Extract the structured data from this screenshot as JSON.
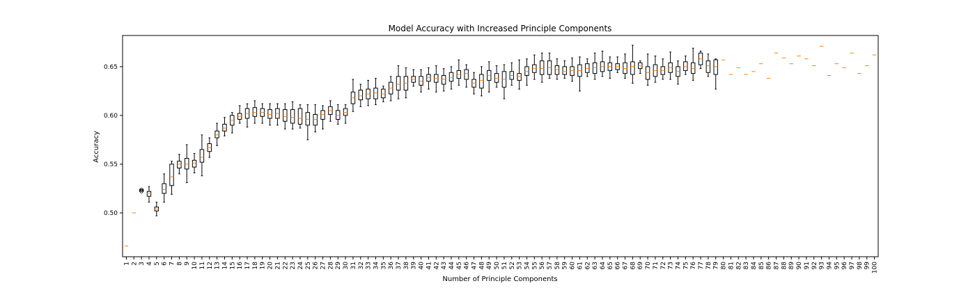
{
  "chart_data": {
    "type": "box",
    "title": "Model Accuracy with Increased Principle Components",
    "xlabel": "Number of Principle Components",
    "ylabel": "Accuracy",
    "ylim": [
      0.455,
      0.682
    ],
    "yticks": [
      0.5,
      0.55,
      0.6,
      0.65
    ],
    "ytick_labels": [
      "0.50",
      "0.55",
      "0.60",
      "0.65"
    ],
    "grid": false,
    "colors": {
      "box": "#000000",
      "median": "#ff7f0e",
      "flier": "#000000"
    },
    "categories": [
      "1",
      "2",
      "3",
      "4",
      "5",
      "6",
      "7",
      "8",
      "9",
      "10",
      "11",
      "12",
      "13",
      "14",
      "15",
      "16",
      "17",
      "18",
      "19",
      "20",
      "21",
      "22",
      "23",
      "24",
      "25",
      "26",
      "27",
      "28",
      "29",
      "30",
      "31",
      "32",
      "33",
      "34",
      "35",
      "36",
      "37",
      "38",
      "39",
      "40",
      "41",
      "42",
      "43",
      "44",
      "45",
      "46",
      "47",
      "48",
      "49",
      "50",
      "51",
      "52",
      "53",
      "54",
      "55",
      "56",
      "57",
      "58",
      "59",
      "60",
      "61",
      "62",
      "63",
      "64",
      "65",
      "66",
      "67",
      "68",
      "69",
      "70",
      "71",
      "72",
      "73",
      "74",
      "75",
      "76",
      "77",
      "78",
      "79",
      "80",
      "81",
      "82",
      "83",
      "84",
      "85",
      "86",
      "87",
      "88",
      "89",
      "90",
      "91",
      "92",
      "93",
      "94",
      "95",
      "96",
      "97",
      "98",
      "99",
      "100"
    ],
    "boxes": [
      {
        "wl": 0.466,
        "q1": 0.466,
        "med": 0.466,
        "q3": 0.466,
        "wh": 0.466
      },
      {
        "wl": 0.5,
        "q1": 0.5,
        "med": 0.5,
        "q3": 0.5,
        "wh": 0.5
      },
      {
        "wl": 0.522,
        "q1": 0.522,
        "med": 0.522,
        "q3": 0.524,
        "wh": 0.524
      },
      {
        "wl": 0.511,
        "q1": 0.517,
        "med": 0.52,
        "q3": 0.522,
        "wh": 0.527
      },
      {
        "wl": 0.497,
        "q1": 0.502,
        "med": 0.504,
        "q3": 0.506,
        "wh": 0.511
      },
      {
        "wl": 0.511,
        "q1": 0.52,
        "med": 0.524,
        "q3": 0.53,
        "wh": 0.54
      },
      {
        "wl": 0.519,
        "q1": 0.528,
        "med": 0.537,
        "q3": 0.55,
        "wh": 0.553
      },
      {
        "wl": 0.54,
        "q1": 0.546,
        "med": 0.55,
        "q3": 0.553,
        "wh": 0.56
      },
      {
        "wl": 0.531,
        "q1": 0.545,
        "med": 0.55,
        "q3": 0.556,
        "wh": 0.57
      },
      {
        "wl": 0.541,
        "q1": 0.547,
        "med": 0.551,
        "q3": 0.554,
        "wh": 0.561
      },
      {
        "wl": 0.538,
        "q1": 0.552,
        "med": 0.557,
        "q3": 0.565,
        "wh": 0.58
      },
      {
        "wl": 0.557,
        "q1": 0.563,
        "med": 0.567,
        "q3": 0.571,
        "wh": 0.577
      },
      {
        "wl": 0.569,
        "q1": 0.577,
        "med": 0.58,
        "q3": 0.584,
        "wh": 0.592
      },
      {
        "wl": 0.579,
        "q1": 0.584,
        "med": 0.587,
        "q3": 0.591,
        "wh": 0.598
      },
      {
        "wl": 0.582,
        "q1": 0.59,
        "med": 0.595,
        "q3": 0.6,
        "wh": 0.603
      },
      {
        "wl": 0.592,
        "q1": 0.596,
        "med": 0.599,
        "q3": 0.602,
        "wh": 0.61
      },
      {
        "wl": 0.588,
        "q1": 0.597,
        "med": 0.602,
        "q3": 0.607,
        "wh": 0.612
      },
      {
        "wl": 0.592,
        "q1": 0.599,
        "med": 0.603,
        "q3": 0.608,
        "wh": 0.615
      },
      {
        "wl": 0.592,
        "q1": 0.599,
        "med": 0.603,
        "q3": 0.607,
        "wh": 0.612
      },
      {
        "wl": 0.59,
        "q1": 0.597,
        "med": 0.601,
        "q3": 0.606,
        "wh": 0.612
      },
      {
        "wl": 0.59,
        "q1": 0.597,
        "med": 0.602,
        "q3": 0.607,
        "wh": 0.612
      },
      {
        "wl": 0.586,
        "q1": 0.594,
        "med": 0.599,
        "q3": 0.606,
        "wh": 0.612
      },
      {
        "wl": 0.586,
        "q1": 0.592,
        "med": 0.598,
        "q3": 0.606,
        "wh": 0.614
      },
      {
        "wl": 0.587,
        "q1": 0.591,
        "med": 0.597,
        "q3": 0.607,
        "wh": 0.611
      },
      {
        "wl": 0.575,
        "q1": 0.59,
        "med": 0.596,
        "q3": 0.603,
        "wh": 0.611
      },
      {
        "wl": 0.583,
        "q1": 0.59,
        "med": 0.596,
        "q3": 0.601,
        "wh": 0.611
      },
      {
        "wl": 0.586,
        "q1": 0.596,
        "med": 0.601,
        "q3": 0.605,
        "wh": 0.61
      },
      {
        "wl": 0.594,
        "q1": 0.601,
        "med": 0.605,
        "q3": 0.609,
        "wh": 0.615
      },
      {
        "wl": 0.591,
        "q1": 0.596,
        "med": 0.6,
        "q3": 0.605,
        "wh": 0.611
      },
      {
        "wl": 0.592,
        "q1": 0.6,
        "med": 0.603,
        "q3": 0.607,
        "wh": 0.611
      },
      {
        "wl": 0.604,
        "q1": 0.612,
        "med": 0.618,
        "q3": 0.624,
        "wh": 0.637
      },
      {
        "wl": 0.609,
        "q1": 0.616,
        "med": 0.62,
        "q3": 0.626,
        "wh": 0.632
      },
      {
        "wl": 0.61,
        "q1": 0.617,
        "med": 0.622,
        "q3": 0.627,
        "wh": 0.636
      },
      {
        "wl": 0.611,
        "q1": 0.617,
        "med": 0.623,
        "q3": 0.628,
        "wh": 0.638
      },
      {
        "wl": 0.614,
        "q1": 0.618,
        "med": 0.622,
        "q3": 0.627,
        "wh": 0.63
      },
      {
        "wl": 0.615,
        "q1": 0.622,
        "med": 0.628,
        "q3": 0.634,
        "wh": 0.64
      },
      {
        "wl": 0.617,
        "q1": 0.626,
        "med": 0.632,
        "q3": 0.64,
        "wh": 0.651
      },
      {
        "wl": 0.618,
        "q1": 0.626,
        "med": 0.633,
        "q3": 0.64,
        "wh": 0.649
      },
      {
        "wl": 0.63,
        "q1": 0.634,
        "med": 0.637,
        "q3": 0.64,
        "wh": 0.647
      },
      {
        "wl": 0.624,
        "q1": 0.631,
        "med": 0.635,
        "q3": 0.64,
        "wh": 0.647
      },
      {
        "wl": 0.627,
        "q1": 0.635,
        "med": 0.639,
        "q3": 0.642,
        "wh": 0.649
      },
      {
        "wl": 0.624,
        "q1": 0.634,
        "med": 0.638,
        "q3": 0.642,
        "wh": 0.651
      },
      {
        "wl": 0.625,
        "q1": 0.632,
        "med": 0.637,
        "q3": 0.641,
        "wh": 0.648
      },
      {
        "wl": 0.627,
        "q1": 0.635,
        "med": 0.639,
        "q3": 0.644,
        "wh": 0.65
      },
      {
        "wl": 0.631,
        "q1": 0.638,
        "med": 0.642,
        "q3": 0.646,
        "wh": 0.657
      },
      {
        "wl": 0.629,
        "q1": 0.637,
        "med": 0.643,
        "q3": 0.647,
        "wh": 0.652
      },
      {
        "wl": 0.622,
        "q1": 0.629,
        "med": 0.633,
        "q3": 0.637,
        "wh": 0.644
      },
      {
        "wl": 0.62,
        "q1": 0.628,
        "med": 0.636,
        "q3": 0.642,
        "wh": 0.65
      },
      {
        "wl": 0.624,
        "q1": 0.636,
        "med": 0.641,
        "q3": 0.646,
        "wh": 0.655
      },
      {
        "wl": 0.629,
        "q1": 0.634,
        "med": 0.638,
        "q3": 0.643,
        "wh": 0.651
      },
      {
        "wl": 0.617,
        "q1": 0.629,
        "med": 0.637,
        "q3": 0.645,
        "wh": 0.652
      },
      {
        "wl": 0.631,
        "q1": 0.637,
        "med": 0.641,
        "q3": 0.645,
        "wh": 0.654
      },
      {
        "wl": 0.627,
        "q1": 0.636,
        "med": 0.64,
        "q3": 0.643,
        "wh": 0.657
      },
      {
        "wl": 0.631,
        "q1": 0.641,
        "med": 0.645,
        "q3": 0.65,
        "wh": 0.658
      },
      {
        "wl": 0.637,
        "q1": 0.644,
        "med": 0.648,
        "q3": 0.652,
        "wh": 0.662
      },
      {
        "wl": 0.634,
        "q1": 0.642,
        "med": 0.648,
        "q3": 0.656,
        "wh": 0.664
      },
      {
        "wl": 0.638,
        "q1": 0.642,
        "med": 0.649,
        "q3": 0.656,
        "wh": 0.664
      },
      {
        "wl": 0.637,
        "q1": 0.642,
        "med": 0.647,
        "q3": 0.651,
        "wh": 0.658
      },
      {
        "wl": 0.638,
        "q1": 0.642,
        "med": 0.645,
        "q3": 0.65,
        "wh": 0.656
      },
      {
        "wl": 0.635,
        "q1": 0.641,
        "med": 0.646,
        "q3": 0.65,
        "wh": 0.659
      },
      {
        "wl": 0.625,
        "q1": 0.64,
        "med": 0.646,
        "q3": 0.652,
        "wh": 0.66
      },
      {
        "wl": 0.64,
        "q1": 0.644,
        "med": 0.648,
        "q3": 0.653,
        "wh": 0.658
      },
      {
        "wl": 0.637,
        "q1": 0.643,
        "med": 0.649,
        "q3": 0.654,
        "wh": 0.664
      },
      {
        "wl": 0.64,
        "q1": 0.645,
        "med": 0.65,
        "q3": 0.655,
        "wh": 0.666
      },
      {
        "wl": 0.638,
        "q1": 0.646,
        "med": 0.65,
        "q3": 0.654,
        "wh": 0.66
      },
      {
        "wl": 0.644,
        "q1": 0.647,
        "med": 0.65,
        "q3": 0.653,
        "wh": 0.66
      },
      {
        "wl": 0.638,
        "q1": 0.643,
        "med": 0.648,
        "q3": 0.654,
        "wh": 0.663
      },
      {
        "wl": 0.633,
        "q1": 0.642,
        "med": 0.65,
        "q3": 0.655,
        "wh": 0.672
      },
      {
        "wl": 0.643,
        "q1": 0.648,
        "med": 0.651,
        "q3": 0.654,
        "wh": 0.656
      },
      {
        "wl": 0.631,
        "q1": 0.637,
        "med": 0.644,
        "q3": 0.65,
        "wh": 0.663
      },
      {
        "wl": 0.634,
        "q1": 0.64,
        "med": 0.646,
        "q3": 0.652,
        "wh": 0.661
      },
      {
        "wl": 0.637,
        "q1": 0.642,
        "med": 0.646,
        "q3": 0.65,
        "wh": 0.658
      },
      {
        "wl": 0.637,
        "q1": 0.644,
        "med": 0.649,
        "q3": 0.654,
        "wh": 0.665
      },
      {
        "wl": 0.632,
        "q1": 0.64,
        "med": 0.645,
        "q3": 0.65,
        "wh": 0.656
      },
      {
        "wl": 0.642,
        "q1": 0.646,
        "med": 0.65,
        "q3": 0.655,
        "wh": 0.661
      },
      {
        "wl": 0.636,
        "q1": 0.643,
        "med": 0.648,
        "q3": 0.654,
        "wh": 0.669
      },
      {
        "wl": 0.648,
        "q1": 0.652,
        "med": 0.658,
        "q3": 0.664,
        "wh": 0.666
      },
      {
        "wl": 0.64,
        "q1": 0.644,
        "med": 0.651,
        "q3": 0.656,
        "wh": 0.663
      },
      {
        "wl": 0.627,
        "q1": 0.642,
        "med": 0.65,
        "q3": 0.657,
        "wh": 0.658
      },
      {
        "wl": 0.657,
        "q1": 0.657,
        "med": 0.657,
        "q3": 0.657,
        "wh": 0.657
      },
      {
        "wl": 0.642,
        "q1": 0.642,
        "med": 0.642,
        "q3": 0.642,
        "wh": 0.642
      },
      {
        "wl": 0.649,
        "q1": 0.649,
        "med": 0.649,
        "q3": 0.649,
        "wh": 0.649
      },
      {
        "wl": 0.642,
        "q1": 0.642,
        "med": 0.642,
        "q3": 0.642,
        "wh": 0.642
      },
      {
        "wl": 0.645,
        "q1": 0.645,
        "med": 0.645,
        "q3": 0.645,
        "wh": 0.645
      },
      {
        "wl": 0.653,
        "q1": 0.653,
        "med": 0.653,
        "q3": 0.653,
        "wh": 0.653
      },
      {
        "wl": 0.638,
        "q1": 0.638,
        "med": 0.638,
        "q3": 0.638,
        "wh": 0.638
      },
      {
        "wl": 0.664,
        "q1": 0.664,
        "med": 0.664,
        "q3": 0.664,
        "wh": 0.664
      },
      {
        "wl": 0.659,
        "q1": 0.659,
        "med": 0.659,
        "q3": 0.659,
        "wh": 0.659
      },
      {
        "wl": 0.653,
        "q1": 0.653,
        "med": 0.653,
        "q3": 0.653,
        "wh": 0.653
      },
      {
        "wl": 0.661,
        "q1": 0.661,
        "med": 0.661,
        "q3": 0.661,
        "wh": 0.661
      },
      {
        "wl": 0.658,
        "q1": 0.658,
        "med": 0.658,
        "q3": 0.658,
        "wh": 0.658
      },
      {
        "wl": 0.651,
        "q1": 0.651,
        "med": 0.651,
        "q3": 0.651,
        "wh": 0.651
      },
      {
        "wl": 0.671,
        "q1": 0.671,
        "med": 0.671,
        "q3": 0.671,
        "wh": 0.671
      },
      {
        "wl": 0.641,
        "q1": 0.641,
        "med": 0.641,
        "q3": 0.641,
        "wh": 0.641
      },
      {
        "wl": 0.653,
        "q1": 0.653,
        "med": 0.653,
        "q3": 0.653,
        "wh": 0.653
      },
      {
        "wl": 0.649,
        "q1": 0.649,
        "med": 0.649,
        "q3": 0.649,
        "wh": 0.649
      },
      {
        "wl": 0.664,
        "q1": 0.664,
        "med": 0.664,
        "q3": 0.664,
        "wh": 0.664
      },
      {
        "wl": 0.643,
        "q1": 0.643,
        "med": 0.643,
        "q3": 0.643,
        "wh": 0.643
      },
      {
        "wl": 0.651,
        "q1": 0.651,
        "med": 0.651,
        "q3": 0.651,
        "wh": 0.651
      },
      {
        "wl": 0.662,
        "q1": 0.662,
        "med": 0.662,
        "q3": 0.662,
        "wh": 0.662
      }
    ],
    "fliers": [
      {
        "category": "3",
        "values": [
          0.524,
          0.522
        ]
      }
    ]
  }
}
